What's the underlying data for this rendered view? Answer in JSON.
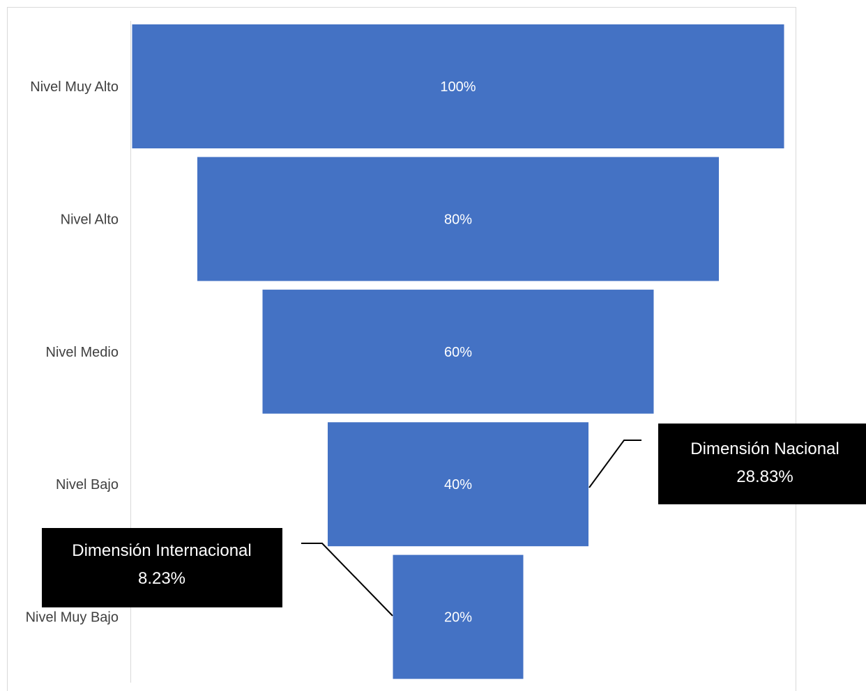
{
  "chart_data": {
    "type": "bar",
    "subtype": "funnel",
    "categories": [
      "Nivel Muy Alto",
      "Nivel Alto",
      "Nivel Medio",
      "Nivel Bajo",
      "Nivel Muy Bajo"
    ],
    "values": [
      100,
      80,
      60,
      40,
      20
    ],
    "data_labels": [
      "100%",
      "80%",
      "60%",
      "40%",
      "20%"
    ],
    "bar_color": "#4472C4",
    "title": "",
    "xlabel": "",
    "ylabel": "",
    "grid": false,
    "annotations": [
      {
        "title": "Dimensión Nacional",
        "value": "28.83%",
        "points_to": "Nivel Bajo"
      },
      {
        "title": "Dimensión Internacional",
        "value": "8.23%",
        "points_to": "Nivel Muy Bajo"
      }
    ]
  }
}
